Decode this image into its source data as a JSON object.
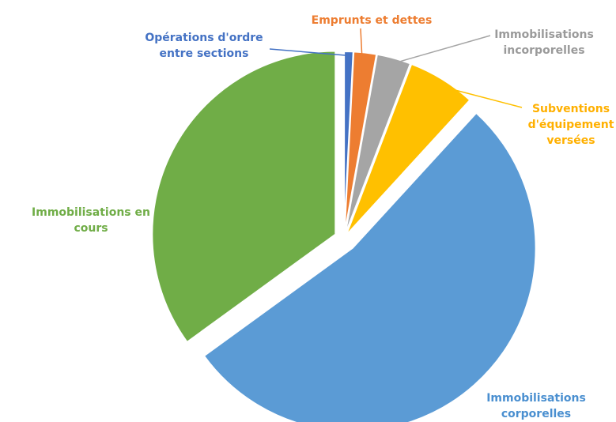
{
  "chart_data": {
    "type": "pie",
    "title": "",
    "slices": [
      {
        "label": "Opérations d'ordre entre sections",
        "lines": [
          "Opérations d'ordre",
          "entre sections"
        ],
        "value": 0.8,
        "color": "#4472c4",
        "text_color": "#4472c4"
      },
      {
        "label": "Emprunts et dettes",
        "lines": [
          "Emprunts et dettes"
        ],
        "value": 2.0,
        "color": "#ed7d31",
        "text_color": "#ed7d31"
      },
      {
        "label": "Immobilisations incorporelles",
        "lines": [
          "Immobilisations",
          "incorporelles"
        ],
        "value": 3.0,
        "color": "#a5a5a5",
        "text_color": "#9a9a9a"
      },
      {
        "label": "Subventions d'équipement versées",
        "lines": [
          "Subventions",
          "d'équipement",
          "versées"
        ],
        "value": 6.0,
        "color": "#ffc000",
        "text_color": "#ffb000"
      },
      {
        "label": "Immobilisations corporelles",
        "lines": [
          "Immobilisations",
          "corporelles"
        ],
        "value": 53.2,
        "color": "#5b9bd5",
        "text_color": "#4a8fd0"
      },
      {
        "label": "Immobilisations en cours",
        "lines": [
          "Immobilisations en",
          "cours"
        ],
        "value": 35.0,
        "color": "#70ad47",
        "text_color": "#70ad47"
      }
    ]
  }
}
